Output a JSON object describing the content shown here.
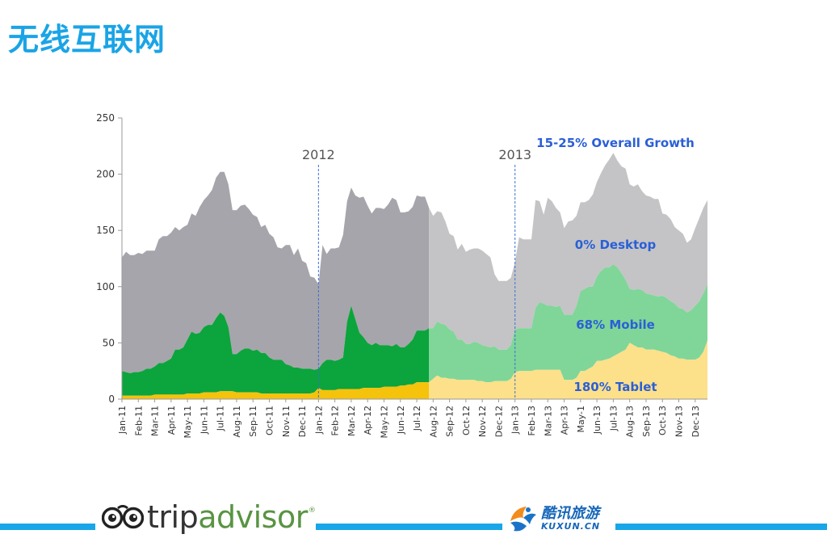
{
  "page": {
    "title": "无线互联网"
  },
  "colors": {
    "title": "#1aa4e6",
    "desktop_2011_2012": "#a6a5ab",
    "mobile_2011_2012": "#0ca43c",
    "tablet_2011_2012": "#f5c20c",
    "desktop_2013": "#c4c4c6",
    "mobile_2013": "#7fd698",
    "tablet_2013": "#fde08a",
    "annotation": "#2a5fd6",
    "year_line": "#3b6fd6",
    "footer_band": "#19a6e8"
  },
  "chart_data": {
    "type": "area",
    "stacked": true,
    "title": "",
    "xlabel": "",
    "ylabel": "",
    "ylim": [
      0,
      250
    ],
    "yticks": [
      0,
      50,
      100,
      150,
      200,
      250
    ],
    "x": [
      "Jan-11",
      "",
      "",
      "",
      "Feb-11",
      "",
      "",
      "",
      "Mar-11",
      "",
      "",
      "",
      "Apr-11",
      "",
      "",
      "",
      "May-11",
      "",
      "",
      "",
      "Jun-11",
      "",
      "",
      "",
      "Jul-11",
      "",
      "",
      "",
      "Aug-11",
      "",
      "",
      "",
      "Sep-11",
      "",
      "",
      "",
      "Oct-11",
      "",
      "",
      "",
      "Nov-11",
      "",
      "",
      "",
      "Dec-11",
      "",
      "",
      "",
      "Jan-12",
      "",
      "",
      "",
      "Feb-12",
      "",
      "",
      "",
      "Mar-12",
      "",
      "",
      "",
      "Apr-12",
      "",
      "",
      "",
      "May-12",
      "",
      "",
      "",
      "Jun-12",
      "",
      "",
      "",
      "Jul-12",
      "",
      "",
      "",
      "Aug-12",
      "",
      "",
      "",
      "Sep-12",
      "",
      "",
      "",
      "Oct-12",
      "",
      "",
      "",
      "Nov-12",
      "",
      "",
      "",
      "Dec-12",
      "",
      "",
      "",
      "Jan-13",
      "",
      "",
      "",
      "Feb-13",
      "",
      "",
      "",
      "Mar-13",
      "",
      "",
      "",
      "Apr-13",
      "",
      "",
      "",
      "May-1",
      "",
      "",
      "",
      "Jun-13",
      "",
      "",
      "",
      "Jul-13",
      "",
      "",
      "",
      "Aug-13",
      "",
      "",
      "",
      "Sep-13",
      "",
      "",
      "",
      "Oct-13",
      "",
      "",
      "",
      "Nov-13",
      "",
      "",
      "",
      "Dec-13",
      "",
      "",
      ""
    ],
    "x_tick_labels": [
      "Jan-11",
      "Feb-11",
      "Mar-11",
      "Apr-11",
      "May-11",
      "Jun-11",
      "Jul-11",
      "Aug-11",
      "Sep-11",
      "Oct-11",
      "Nov-11",
      "Dec-11",
      "Jan-12",
      "Feb-12",
      "Mar-12",
      "Apr-12",
      "May-12",
      "Jun-12",
      "Jul-12",
      "Aug-12",
      "Sep-12",
      "Oct-12",
      "Nov-12",
      "Dec-12",
      "Jan-13",
      "Feb-13",
      "Mar-13",
      "Apr-13",
      "May-1",
      "Jun-13",
      "Jul-13",
      "Aug-13",
      "Sep-13",
      "Oct-13",
      "Nov-13",
      "Dec-13"
    ],
    "series": [
      {
        "name": "Tablet",
        "values": [
          3,
          3,
          3,
          3,
          3,
          3,
          3,
          3,
          4,
          4,
          4,
          4,
          4,
          4,
          4,
          4,
          5,
          5,
          5,
          5,
          6,
          6,
          6,
          6,
          7,
          7,
          7,
          7,
          6,
          6,
          6,
          6,
          6,
          6,
          5,
          5,
          5,
          5,
          5,
          5,
          5,
          5,
          5,
          5,
          5,
          5,
          5,
          6,
          10,
          8,
          8,
          8,
          8,
          9,
          9,
          9,
          9,
          9,
          9,
          10,
          10,
          10,
          10,
          10,
          11,
          11,
          11,
          11,
          12,
          12,
          13,
          13,
          15,
          15,
          15,
          15,
          18,
          21,
          19,
          19,
          18,
          18,
          17,
          17,
          17,
          17,
          17,
          16,
          16,
          15,
          15,
          16,
          16,
          16,
          16,
          18,
          24,
          25,
          25,
          25,
          25,
          26,
          26,
          26,
          26,
          26,
          26,
          26,
          17,
          17,
          17,
          19,
          25,
          25,
          27,
          29,
          34,
          34,
          35,
          36,
          38,
          40,
          42,
          44,
          50,
          48,
          46,
          46,
          44,
          44,
          44,
          43,
          42,
          41,
          39,
          38,
          36,
          36,
          35,
          35,
          35,
          37,
          42,
          52
        ]
      },
      {
        "name": "Mobile",
        "values": [
          22,
          21,
          20,
          21,
          21,
          22,
          24,
          24,
          25,
          28,
          28,
          30,
          32,
          40,
          40,
          42,
          48,
          55,
          53,
          54,
          58,
          60,
          60,
          66,
          70,
          67,
          57,
          33,
          34,
          37,
          39,
          39,
          37,
          38,
          36,
          36,
          32,
          30,
          30,
          30,
          26,
          25,
          23,
          23,
          22,
          22,
          22,
          20,
          17,
          24,
          27,
          27,
          26,
          26,
          28,
          60,
          74,
          62,
          50,
          45,
          40,
          38,
          40,
          38,
          37,
          37,
          36,
          38,
          34,
          34,
          36,
          40,
          46,
          46,
          46,
          48,
          45,
          48,
          48,
          47,
          44,
          42,
          36,
          36,
          32,
          32,
          34,
          34,
          32,
          32,
          31,
          31,
          28,
          28,
          28,
          30,
          38,
          38,
          38,
          38,
          38,
          55,
          60,
          59,
          57,
          57,
          56,
          57,
          58,
          58,
          58,
          64,
          71,
          73,
          73,
          71,
          75,
          80,
          82,
          81,
          82,
          77,
          70,
          62,
          48,
          49,
          52,
          51,
          50,
          49,
          48,
          48,
          50,
          49,
          48,
          47,
          45,
          44,
          42,
          44,
          48,
          50,
          52,
          50
        ]
      },
      {
        "name": "Desktop",
        "values": [
          101,
          107,
          105,
          104,
          106,
          104,
          105,
          105,
          103,
          110,
          113,
          111,
          112,
          109,
          106,
          107,
          102,
          105,
          105,
          112,
          113,
          115,
          120,
          125,
          125,
          128,
          127,
          128,
          128,
          129,
          128,
          124,
          121,
          118,
          112,
          114,
          110,
          109,
          100,
          99,
          106,
          107,
          100,
          106,
          96,
          94,
          82,
          82,
          75,
          105,
          94,
          99,
          100,
          100,
          109,
          107,
          105,
          110,
          120,
          125,
          122,
          117,
          120,
          122,
          121,
          125,
          132,
          128,
          120,
          120,
          118,
          118,
          120,
          119,
          119,
          107,
          100,
          98,
          99,
          92,
          85,
          85,
          80,
          85,
          82,
          84,
          83,
          84,
          84,
          82,
          80,
          64,
          61,
          61,
          61,
          60,
          60,
          81,
          79,
          79,
          79,
          96,
          90,
          79,
          96,
          93,
          88,
          83,
          77,
          83,
          84,
          80,
          79,
          77,
          77,
          82,
          84,
          87,
          91,
          96,
          99,
          95,
          95,
          99,
          93,
          92,
          93,
          88,
          87,
          87,
          86,
          87,
          73,
          74,
          73,
          68,
          69,
          67,
          62,
          63,
          69,
          74,
          76,
          75
        ]
      }
    ],
    "year_markers": [
      {
        "label": "2012",
        "x": "Jan-12"
      },
      {
        "label": "2013",
        "x": "Jan-13"
      }
    ],
    "annotations": [
      {
        "label": "15-25% Overall Growth",
        "series": "total"
      },
      {
        "label": "0% Desktop",
        "series": "Desktop"
      },
      {
        "label": "68% Mobile",
        "series": "Mobile"
      },
      {
        "label": "180% Tablet",
        "series": "Tablet"
      }
    ],
    "grid": false,
    "legend": "none"
  },
  "footer": {
    "tripadvisor": {
      "part_a": "trip",
      "part_b": "advisor",
      "reg": "®"
    },
    "kuxun": {
      "cn": "酷讯旅游",
      "en": "KUXUN.CN"
    }
  }
}
